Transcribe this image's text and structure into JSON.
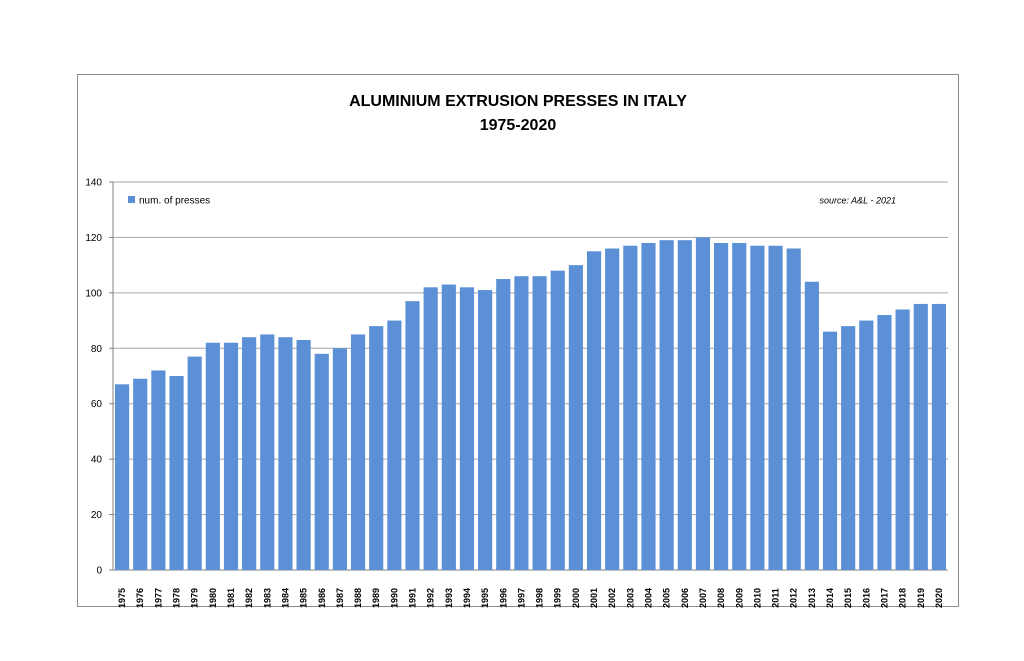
{
  "chart_data": {
    "type": "bar",
    "title": "ALUMINIUM EXTRUSION PRESSES IN ITALY",
    "subtitle": "1975-2020",
    "source": "source: A&L - 2021",
    "ylim": [
      0,
      140
    ],
    "yticks": [
      0,
      20,
      40,
      60,
      80,
      100,
      120,
      140
    ],
    "grid": true,
    "legend_position": "top-left",
    "bar_color": "#5B8FD6",
    "categories": [
      "1975",
      "1976",
      "1977",
      "1978",
      "1979",
      "1980",
      "1981",
      "1982",
      "1983",
      "1984",
      "1985",
      "1986",
      "1987",
      "1988",
      "1989",
      "1990",
      "1991",
      "1992",
      "1993",
      "1994",
      "1995",
      "1996",
      "1997",
      "1998",
      "1999",
      "2000",
      "2001",
      "2002",
      "2003",
      "2004",
      "2005",
      "2006",
      "2007",
      "2008",
      "2009",
      "2010",
      "2011",
      "2012",
      "2013",
      "2014",
      "2015",
      "2016",
      "2017",
      "2018",
      "2019",
      "2020"
    ],
    "series": [
      {
        "name": "num. of presses",
        "values": [
          67,
          69,
          72,
          70,
          77,
          82,
          82,
          84,
          85,
          84,
          83,
          78,
          80,
          85,
          88,
          90,
          97,
          102,
          103,
          102,
          101,
          105,
          106,
          106,
          108,
          110,
          115,
          116,
          117,
          118,
          119,
          119,
          120,
          118,
          118,
          117,
          117,
          116,
          104,
          86,
          88,
          90,
          92,
          94,
          96,
          96
        ]
      }
    ]
  }
}
